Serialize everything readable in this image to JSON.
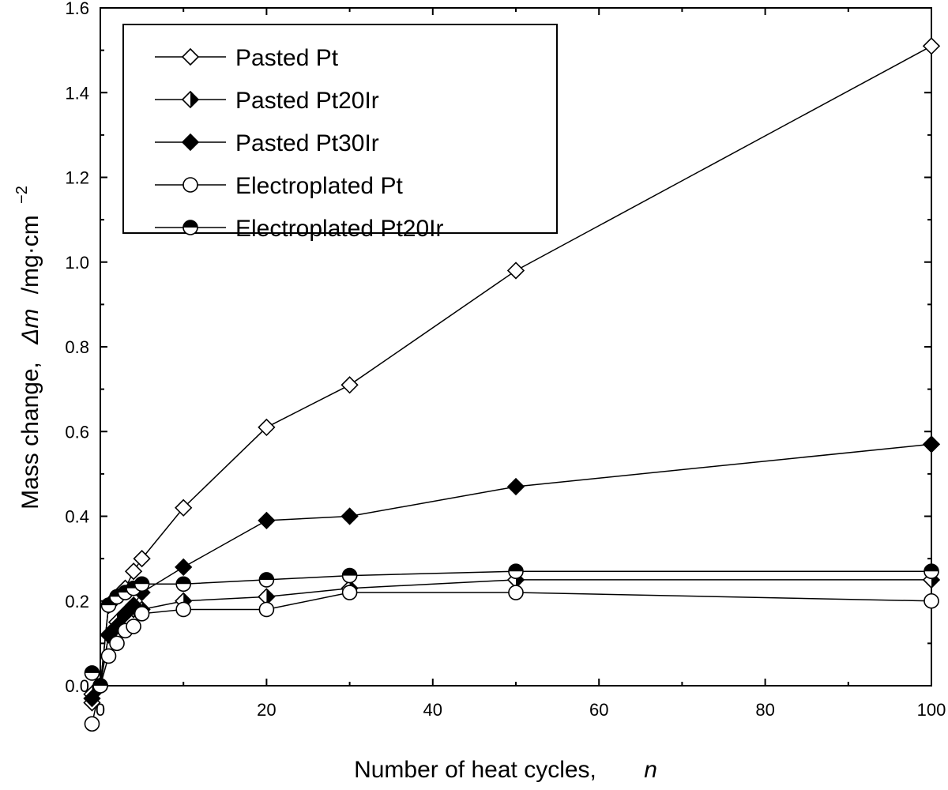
{
  "chart_data": {
    "type": "line",
    "title": "",
    "xlabel": "Number of heat cycles,",
    "xlabel_var": "n",
    "ylabel": "Mass change,",
    "ylabel_var": "Δm",
    "ylabel_unit": "/mg·cm",
    "ylabel_exp": "−2",
    "xlim": [
      0,
      100
    ],
    "ylim": [
      0,
      1.6
    ],
    "x_ticks": [
      0,
      20,
      40,
      60,
      80,
      100
    ],
    "x_tick_labels": [
      "0",
      "20",
      "40",
      "60",
      "80",
      "100"
    ],
    "y_ticks": [
      0,
      0.2,
      0.4,
      0.6,
      0.8,
      1.0,
      1.2,
      1.4,
      1.6
    ],
    "y_tick_labels": [
      "0.0",
      "0.2",
      "0.4",
      "0.6",
      "0.8",
      "1.0",
      "1.2",
      "1.4",
      "1.6"
    ],
    "legend_position": "top-left",
    "series": [
      {
        "name": "Pasted Pt",
        "marker": "diamond-open",
        "x": [
          -1,
          0,
          1,
          2,
          3,
          4,
          5,
          10,
          20,
          30,
          50,
          100
        ],
        "y": [
          -0.04,
          0.0,
          0.19,
          0.21,
          0.23,
          0.27,
          0.3,
          0.42,
          0.61,
          0.71,
          0.98,
          1.51
        ]
      },
      {
        "name": "Pasted Pt20Ir",
        "marker": "diamond-half",
        "x": [
          -1,
          0,
          1,
          2,
          3,
          4,
          5,
          10,
          20,
          30,
          50,
          100
        ],
        "y": [
          -0.02,
          0.0,
          0.12,
          0.15,
          0.17,
          0.18,
          0.18,
          0.2,
          0.21,
          0.23,
          0.25,
          0.25
        ]
      },
      {
        "name": "Pasted Pt30Ir",
        "marker": "diamond-filled",
        "x": [
          -1,
          0,
          1,
          2,
          3,
          4,
          5,
          10,
          20,
          30,
          50,
          100
        ],
        "y": [
          -0.03,
          0.0,
          0.12,
          0.14,
          0.17,
          0.19,
          0.22,
          0.28,
          0.39,
          0.4,
          0.47,
          0.57
        ]
      },
      {
        "name": "Electroplated Pt",
        "marker": "circle-open",
        "x": [
          -1,
          0,
          1,
          2,
          3,
          4,
          5,
          10,
          20,
          30,
          50,
          100
        ],
        "y": [
          -0.09,
          0.0,
          0.07,
          0.1,
          0.13,
          0.14,
          0.17,
          0.18,
          0.18,
          0.22,
          0.22,
          0.2
        ]
      },
      {
        "name": "Electroplated Pt20Ir",
        "marker": "circle-half",
        "x": [
          -1,
          0,
          1,
          2,
          3,
          4,
          5,
          10,
          20,
          30,
          50,
          100
        ],
        "y": [
          0.03,
          0.0,
          0.19,
          0.21,
          0.22,
          0.23,
          0.24,
          0.24,
          0.25,
          0.26,
          0.27,
          0.27
        ]
      }
    ]
  }
}
